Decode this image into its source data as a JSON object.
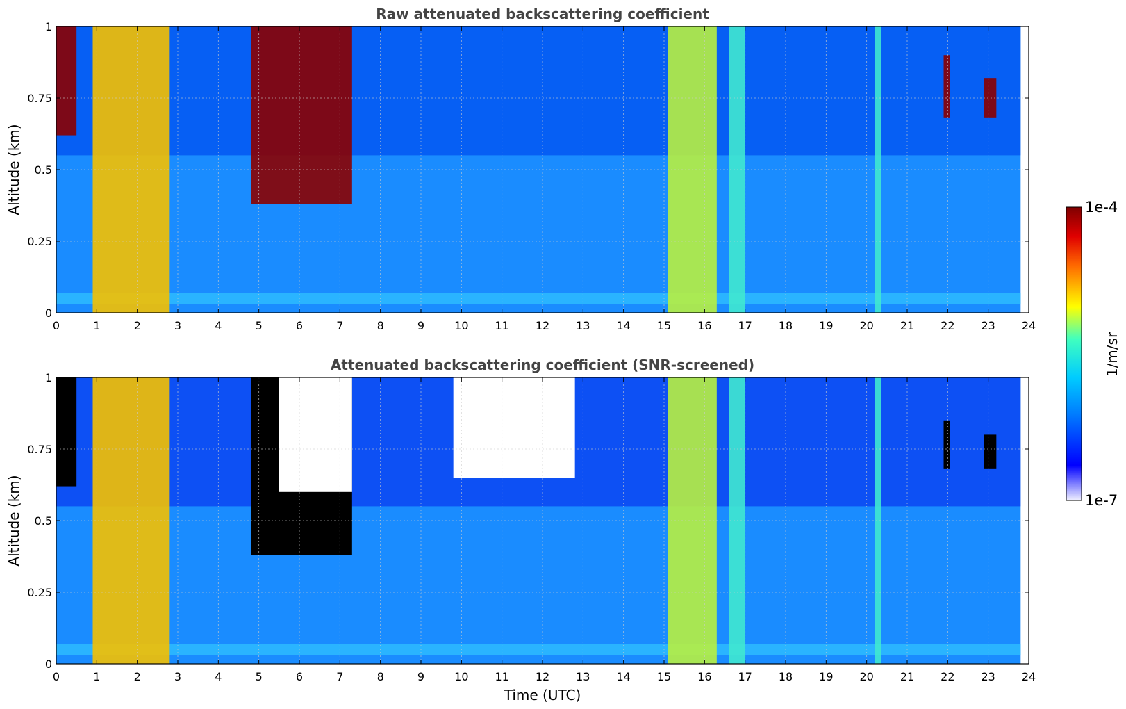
{
  "chart_data": [
    {
      "type": "heatmap",
      "title": "Raw attenuated backscattering coefficient",
      "xlabel": "",
      "ylabel": "Altitude (km)",
      "xlim": [
        0,
        24
      ],
      "ylim": [
        0,
        1
      ],
      "x_ticks": [
        "0",
        "1",
        "2",
        "3",
        "4",
        "5",
        "6",
        "7",
        "8",
        "9",
        "10",
        "11",
        "12",
        "13",
        "14",
        "15",
        "16",
        "17",
        "18",
        "19",
        "20",
        "21",
        "22",
        "23",
        "24"
      ],
      "y_ticks": [
        "0",
        "0.25",
        "0.5",
        "0.75",
        "1"
      ],
      "grid": true,
      "screened": false,
      "data_end_time": 23.8,
      "features": [
        {
          "label": "aerosol plume",
          "t_start": 0.9,
          "t_end": 2.8,
          "alt_bottom": 0.0,
          "alt_top": 1.0,
          "level": "high"
        },
        {
          "label": "dense layer",
          "t_start": 0.0,
          "t_end": 0.5,
          "alt_bottom": 0.62,
          "alt_top": 1.0,
          "level": "very high"
        },
        {
          "label": "descending layer",
          "t_start": 4.8,
          "t_end": 7.3,
          "alt_bottom": 0.38,
          "alt_top": 1.0,
          "level": "very high"
        },
        {
          "label": "vertical streak",
          "t_start": 15.1,
          "t_end": 16.3,
          "alt_bottom": 0.0,
          "alt_top": 1.0,
          "level": "medium-high"
        },
        {
          "label": "vertical streak",
          "t_start": 16.6,
          "t_end": 17.0,
          "alt_bottom": 0.0,
          "alt_top": 1.0,
          "level": "medium"
        },
        {
          "label": "vertical streak",
          "t_start": 20.2,
          "t_end": 20.35,
          "alt_bottom": 0.0,
          "alt_top": 1.0,
          "level": "medium"
        },
        {
          "label": "cloud patch",
          "t_start": 21.9,
          "t_end": 22.05,
          "alt_bottom": 0.68,
          "alt_top": 0.9,
          "level": "very high"
        },
        {
          "label": "cloud patch",
          "t_start": 22.9,
          "t_end": 23.2,
          "alt_bottom": 0.68,
          "alt_top": 0.82,
          "level": "very high"
        }
      ]
    },
    {
      "type": "heatmap",
      "title": "Attenuated backscattering coefficient (SNR-screened)",
      "xlabel": "Time (UTC)",
      "ylabel": "Altitude (km)",
      "xlim": [
        0,
        24
      ],
      "ylim": [
        0,
        1
      ],
      "x_ticks": [
        "0",
        "1",
        "2",
        "3",
        "4",
        "5",
        "6",
        "7",
        "8",
        "9",
        "10",
        "11",
        "12",
        "13",
        "14",
        "15",
        "16",
        "17",
        "18",
        "19",
        "20",
        "21",
        "22",
        "23",
        "24"
      ],
      "y_ticks": [
        "0",
        "0.25",
        "0.5",
        "0.75",
        "1"
      ],
      "grid": true,
      "screened": true,
      "data_end_time": 23.8,
      "features": [
        {
          "label": "aerosol plume",
          "t_start": 0.9,
          "t_end": 2.8,
          "alt_bottom": 0.0,
          "alt_top": 1.0,
          "level": "high"
        },
        {
          "label": "saturated layer",
          "t_start": 0.0,
          "t_end": 0.5,
          "alt_bottom": 0.62,
          "alt_top": 1.0,
          "level": "saturated"
        },
        {
          "label": "saturated layer",
          "t_start": 4.8,
          "t_end": 7.3,
          "alt_bottom": 0.38,
          "alt_top": 1.0,
          "level": "saturated"
        },
        {
          "label": "screened region",
          "t_start": 5.5,
          "t_end": 7.3,
          "alt_bottom": 0.6,
          "alt_top": 1.0,
          "level": "masked"
        },
        {
          "label": "screened region",
          "t_start": 9.8,
          "t_end": 12.8,
          "alt_bottom": 0.65,
          "alt_top": 1.0,
          "level": "masked"
        },
        {
          "label": "vertical streak",
          "t_start": 15.1,
          "t_end": 16.3,
          "alt_bottom": 0.0,
          "alt_top": 1.0,
          "level": "medium-high"
        },
        {
          "label": "vertical streak",
          "t_start": 16.6,
          "t_end": 17.0,
          "alt_bottom": 0.0,
          "alt_top": 1.0,
          "level": "medium"
        },
        {
          "label": "vertical streak",
          "t_start": 20.2,
          "t_end": 20.35,
          "alt_bottom": 0.0,
          "alt_top": 1.0,
          "level": "medium"
        },
        {
          "label": "saturated patch",
          "t_start": 21.9,
          "t_end": 22.05,
          "alt_bottom": 0.68,
          "alt_top": 0.85,
          "level": "saturated"
        },
        {
          "label": "saturated patch",
          "t_start": 22.9,
          "t_end": 23.2,
          "alt_bottom": 0.68,
          "alt_top": 0.8,
          "level": "saturated"
        }
      ]
    }
  ],
  "colorbar": {
    "label": "1/m/sr",
    "max_label": "1e-4",
    "min_label": "1e-7",
    "min": 1e-07,
    "max": 0.0001,
    "scale": "log",
    "colormap": "jet",
    "colors": [
      "#f2f2ff",
      "#0000ff",
      "#00aaff",
      "#33ffcc",
      "#ffff00",
      "#ff6600",
      "#cc0000",
      "#800000"
    ]
  }
}
